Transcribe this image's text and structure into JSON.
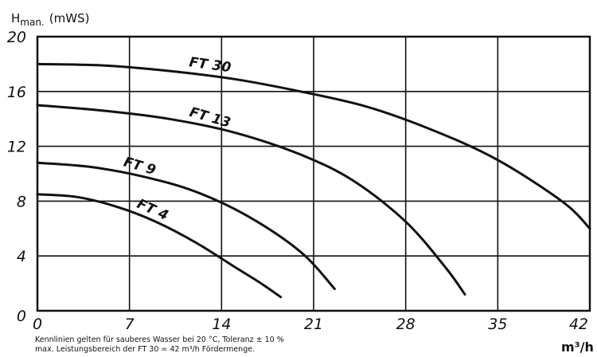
{
  "chart_data": {
    "type": "line",
    "ylabel_main": "H",
    "ylabel_sub": "man.",
    "ylabel_unit": "(mWS)",
    "xlabel": "m³/h",
    "xlim": [
      0,
      42
    ],
    "ylim": [
      0,
      20
    ],
    "xticks": [
      0,
      7,
      14,
      21,
      28,
      35,
      42
    ],
    "yticks": [
      0,
      4,
      8,
      12,
      16,
      20
    ],
    "grid": true,
    "colors": {
      "line": "#111111",
      "grid": "#111111",
      "background": "#ffffff"
    },
    "series": [
      {
        "name": "FT 30",
        "x": [
          0,
          5,
          10,
          15,
          20,
          25,
          30,
          35,
          40,
          42
        ],
        "y": [
          18.0,
          17.9,
          17.5,
          16.9,
          16.0,
          14.9,
          13.2,
          11.0,
          7.9,
          6.0
        ]
      },
      {
        "name": "FT 13",
        "x": [
          0,
          5,
          10,
          15,
          20,
          24,
          28,
          31,
          32.5
        ],
        "y": [
          15.0,
          14.6,
          14.0,
          13.0,
          11.4,
          9.5,
          6.5,
          3.2,
          1.2
        ]
      },
      {
        "name": "FT 9",
        "x": [
          0,
          4,
          8,
          12,
          16,
          20,
          22.6
        ],
        "y": [
          10.8,
          10.5,
          9.8,
          8.7,
          6.9,
          4.3,
          1.6
        ]
      },
      {
        "name": "FT 4",
        "x": [
          0,
          3,
          6,
          9,
          12,
          15,
          17,
          18.5
        ],
        "y": [
          8.5,
          8.3,
          7.6,
          6.5,
          5.0,
          3.2,
          2.0,
          1.0
        ]
      }
    ],
    "footnote": [
      "Kennlinien gelten für sauberes Wasser bei 20 °C, Toleranz ± 10 %",
      "max. Leistungsbereich der FT 30 = 42 m³/h Fördermenge."
    ]
  }
}
